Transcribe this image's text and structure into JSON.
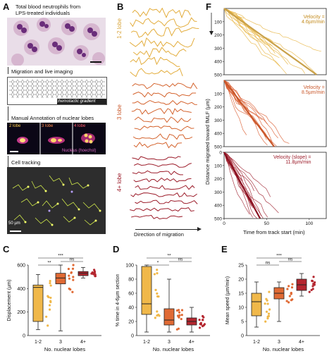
{
  "panelA": {
    "label": "A",
    "title_line1": "Total blood neutrophils from",
    "title_line2": "LPS-treated individuals",
    "step1": "Migration and live imaging",
    "gradient": "chemotactic gradient",
    "step2": "Manual Annotation of nuclear lobes",
    "lobe_2": "2 lobe",
    "lobe_3": "3 lobe",
    "lobe_4": "4 lobe",
    "nucleus": "Nucleus (hoechst)",
    "step3": "Cell tracking",
    "scale": "50 µm"
  },
  "panelB": {
    "label": "B",
    "group1": "1-2 lobe",
    "group2": "3 lobe",
    "group3": "4+ lobe",
    "xaxis": "Direction of migration"
  },
  "panelF": {
    "label": "F",
    "ylabel": "Distance migrated toward fMLF (µm)",
    "xlabel": "Time from track start (min)",
    "velocity1": "Velocity =",
    "velocity1_val": "4.6µm/min",
    "velocity2": "Velocity =",
    "velocity2_val": "8.5µm/min",
    "velocity3": "Velocity (slope) =",
    "velocity3_val": "11.8µm/min"
  },
  "chart_data": [
    {
      "type": "line",
      "panel": "F-top",
      "ylim": [
        500,
        0
      ],
      "xlim": [
        0,
        120
      ],
      "yticks": [
        "100",
        "200",
        "300",
        "400",
        "500"
      ],
      "xticks": [],
      "fit_slope": 4.6,
      "color": "#e6b23a"
    },
    {
      "type": "line",
      "panel": "F-middle",
      "ylim": [
        500,
        0
      ],
      "xlim": [
        0,
        120
      ],
      "yticks": [
        "100",
        "200",
        "300",
        "400",
        "500"
      ],
      "xticks": [],
      "fit_slope": 8.5,
      "color": "#d9582a"
    },
    {
      "type": "line",
      "panel": "F-bottom",
      "ylim": [
        500,
        0
      ],
      "xlim": [
        0,
        120
      ],
      "yticks": [
        "0",
        "100",
        "200",
        "300",
        "400",
        "500"
      ],
      "xticks": [
        "0",
        "50",
        "100"
      ],
      "fit_slope": 11.8,
      "color": "#9c1c2a"
    },
    {
      "type": "box",
      "panel": "C",
      "ylabel": "Displacement (µm)",
      "xlabel": "No. nuclear lobes",
      "categories": [
        "1-2",
        "3",
        "4+"
      ],
      "ylim": [
        0,
        600
      ],
      "yticks": [
        "0",
        "200",
        "400",
        "600"
      ],
      "boxes": [
        {
          "min": 50,
          "q1": 120,
          "median": 410,
          "q3": 430,
          "max": 520
        },
        {
          "min": 40,
          "q1": 440,
          "median": 490,
          "q3": 530,
          "max": 600
        },
        {
          "min": 490,
          "q1": 510,
          "median": 530,
          "q3": 545,
          "max": 580
        }
      ],
      "significance": [
        "***",
        "**",
        "ns"
      ]
    },
    {
      "type": "box",
      "panel": "D",
      "ylabel": "% time in 4-6µm section",
      "xlabel": "No. nuclear lobes",
      "categories": [
        "1-2",
        "3",
        "4+"
      ],
      "ylim": [
        0,
        100
      ],
      "yticks": [
        "0",
        "20",
        "40",
        "60",
        "80",
        "100"
      ],
      "boxes": [
        {
          "min": 5,
          "q1": 30,
          "median": 45,
          "q3": 98,
          "max": 100
        },
        {
          "min": 5,
          "q1": 15,
          "median": 22,
          "q3": 38,
          "max": 80
        },
        {
          "min": 5,
          "q1": 15,
          "median": 20,
          "q3": 25,
          "max": 40
        }
      ],
      "significance": [
        "**",
        "*",
        "ns"
      ]
    },
    {
      "type": "box",
      "panel": "E",
      "ylabel": "Mean speed (µm/min)",
      "xlabel": "No. nuclear lobes",
      "categories": [
        "1-2",
        "3",
        "4+"
      ],
      "ylim": [
        0,
        25
      ],
      "yticks": [
        "0",
        "5",
        "10",
        "15",
        "20",
        "25"
      ],
      "boxes": [
        {
          "min": 3,
          "q1": 7,
          "median": 12,
          "q3": 15,
          "max": 19
        },
        {
          "min": 5,
          "q1": 13,
          "median": 15,
          "q3": 17,
          "max": 19
        },
        {
          "min": 14,
          "q1": 16,
          "median": 18,
          "q3": 20,
          "max": 22
        }
      ],
      "significance": [
        "***",
        "ns",
        "ns"
      ]
    }
  ]
}
